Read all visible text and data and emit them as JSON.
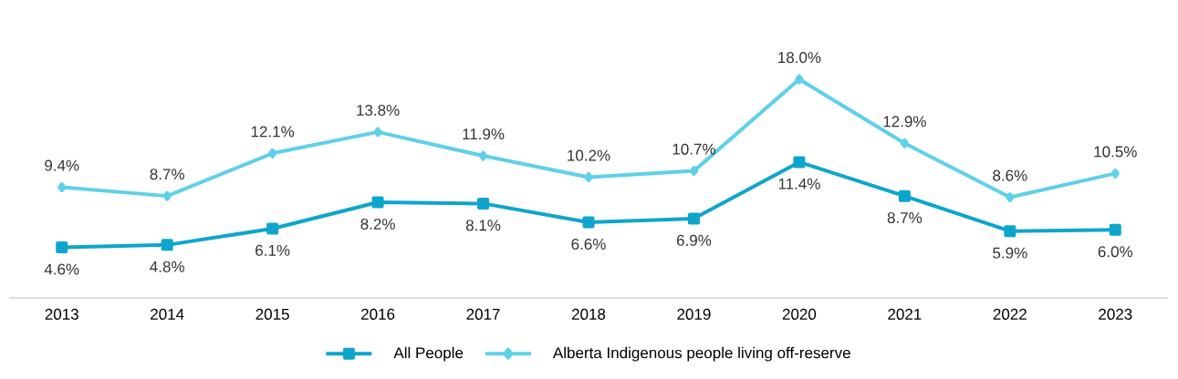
{
  "chart_data": {
    "type": "line",
    "categories": [
      "2013",
      "2014",
      "2015",
      "2016",
      "2017",
      "2018",
      "2019",
      "2020",
      "2021",
      "2022",
      "2023"
    ],
    "series": [
      {
        "name": "All People",
        "color": "#0ea5cc",
        "marker": "square",
        "values": [
          4.6,
          4.8,
          6.1,
          8.2,
          8.1,
          6.6,
          6.9,
          11.4,
          8.7,
          5.9,
          6.0
        ],
        "value_labels": [
          "4.6%",
          "4.8%",
          "6.1%",
          "8.2%",
          "8.1%",
          "6.6%",
          "6.9%",
          "11.4%",
          "8.7%",
          "5.9%",
          "6.0%"
        ]
      },
      {
        "name": "Alberta Indigenous people living off-reserve",
        "color": "#5fd0ea",
        "marker": "diamond",
        "values": [
          9.4,
          8.7,
          12.1,
          13.8,
          11.9,
          10.2,
          10.7,
          18.0,
          12.9,
          8.6,
          10.5
        ],
        "value_labels": [
          "9.4%",
          "8.7%",
          "12.1%",
          "13.8%",
          "11.9%",
          "10.2%",
          "10.7%",
          "18.0%",
          "12.9%",
          "8.6%",
          "10.5%"
        ]
      }
    ],
    "legend": "bottom",
    "grid": false,
    "line_style": "solid",
    "tick_labels": "x"
  }
}
